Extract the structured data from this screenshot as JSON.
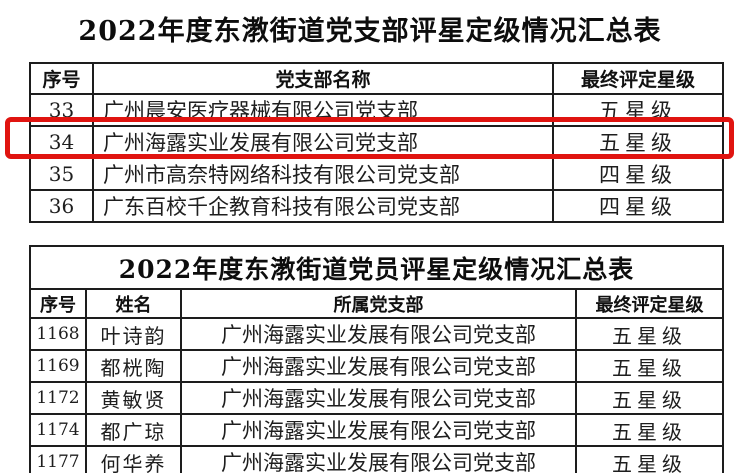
{
  "page": {
    "branch_title": "2022年度东漖街道党支部评星定级情况汇总表"
  },
  "branch_table": {
    "headers": {
      "serial": "序号",
      "name": "党支部名称",
      "rating": "最终评定星级"
    },
    "rows": [
      {
        "serial": "33",
        "name": "广州晨安医疗器械有限公司党支部",
        "rating": "五星级"
      },
      {
        "serial": "34",
        "name": "广州海露实业发展有限公司党支部",
        "rating": "五星级"
      },
      {
        "serial": "35",
        "name": "广州市高奈特网络科技有限公司党支部",
        "rating": "四星级"
      },
      {
        "serial": "36",
        "name": "广东百校千企教育科技有限公司党支部",
        "rating": "四星级"
      }
    ],
    "highlighted_row_serial": "34"
  },
  "member_table": {
    "title": "2022年度东漖街道党员评星定级情况汇总表",
    "headers": {
      "serial": "序号",
      "name": "姓名",
      "branch": "所属党支部",
      "rating": "最终评定星级"
    },
    "rows": [
      {
        "serial": "1168",
        "name": "叶诗韵",
        "branch": "广州海露实业发展有限公司党支部",
        "rating": "五星级"
      },
      {
        "serial": "1169",
        "name": "都桄陶",
        "branch": "广州海露实业发展有限公司党支部",
        "rating": "五星级"
      },
      {
        "serial": "1172",
        "name": "黄敏贤",
        "branch": "广州海露实业发展有限公司党支部",
        "rating": "五星级"
      },
      {
        "serial": "1174",
        "name": "都广琼",
        "branch": "广州海露实业发展有限公司党支部",
        "rating": "五星级"
      },
      {
        "serial": "1177",
        "name": "何华养",
        "branch": "广州海露实业发展有限公司党支部",
        "rating": "五星级"
      }
    ]
  },
  "colors": {
    "highlight_box": "#e01410",
    "table_border": "#1d1d1d",
    "text": "#1e1e1e",
    "background": "#ffffff"
  }
}
